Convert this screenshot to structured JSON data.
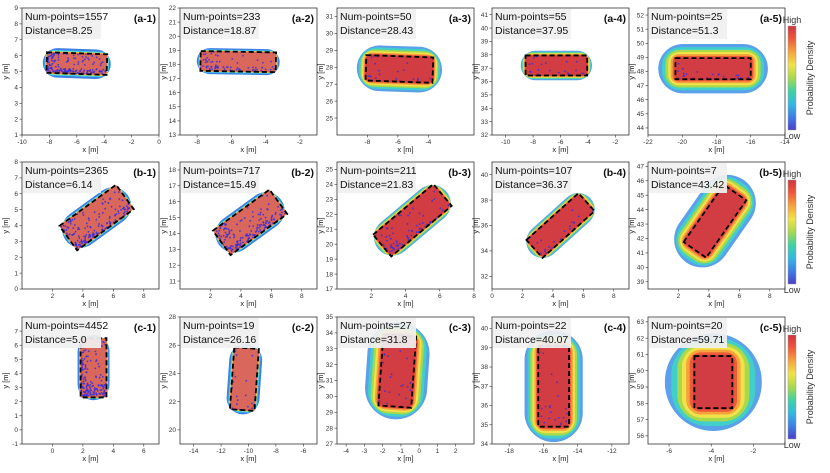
{
  "colorbar": {
    "title": "Probability Density",
    "high": "High",
    "low": "Low",
    "colors": [
      "#4a3fc8",
      "#3d7fe6",
      "#34b9e2",
      "#3fd2a3",
      "#a8d94b",
      "#f2e24a",
      "#f7a33d",
      "#ee5b3a",
      "#cf3440"
    ]
  },
  "chart_data": [
    {
      "type": "scatter",
      "id": "(a-1)",
      "num_label": "Num-points=1557",
      "dist_label": "Distance=8.25",
      "xlabel": "x [m]",
      "ylabel": "y [m]",
      "xlim": [
        -10,
        0
      ],
      "ylim": [
        1,
        9
      ],
      "xticks": [
        "-10",
        "-8",
        "-6",
        "-4",
        "-2",
        "0"
      ],
      "yticks": [
        "1",
        "2",
        "3",
        "4",
        "5",
        "6",
        "7",
        "8",
        "9"
      ],
      "box": {
        "cx": -6,
        "cy": 5.5,
        "w": 4.4,
        "h": 1.3,
        "angle": -2
      },
      "spread": 0.28,
      "density": "red",
      "points": "heavy"
    },
    {
      "type": "scatter",
      "id": "(a-2)",
      "num_label": "Num-points=233",
      "dist_label": "Distance=18.87",
      "xlabel": "x [m]",
      "ylabel": "y [m]",
      "xlim": [
        -9,
        -1
      ],
      "ylim": [
        13,
        22
      ],
      "xticks": [
        "-8",
        "-6",
        "-4",
        "-2"
      ],
      "yticks": [
        "13",
        "14",
        "15",
        "16",
        "17",
        "18",
        "19",
        "20",
        "21",
        "22"
      ],
      "box": {
        "cx": -5.6,
        "cy": 18.2,
        "w": 4.4,
        "h": 1.4,
        "angle": -1
      },
      "spread": 0.22,
      "density": "red",
      "points": "medium"
    },
    {
      "type": "scatter",
      "id": "(a-3)",
      "num_label": "Num-points=50",
      "dist_label": "Distance=28.43",
      "xlabel": "x [m]",
      "ylabel": "y [m]",
      "xlim": [
        -10,
        -1
      ],
      "ylim": [
        24,
        31.5
      ],
      "xticks": [
        "-8",
        "-6",
        "-4"
      ],
      "yticks": [
        "25",
        "26",
        "27",
        "28",
        "29",
        "30",
        "31"
      ],
      "box": {
        "cx": -5.9,
        "cy": 27.9,
        "w": 4.4,
        "h": 1.5,
        "angle": -2
      },
      "spread": 0.6,
      "density": "gradient",
      "points": "light"
    },
    {
      "type": "scatter",
      "id": "(a-4)",
      "num_label": "Num-points=55",
      "dist_label": "Distance=37.95",
      "xlabel": "x [m]",
      "ylabel": "y [m]",
      "xlim": [
        -11,
        -1
      ],
      "ylim": [
        32,
        41.5
      ],
      "xticks": [
        "-10",
        "-8",
        "-6",
        "-4",
        "-2"
      ],
      "yticks": [
        "32",
        "33",
        "34",
        "35",
        "36",
        "37",
        "38",
        "39",
        "40",
        "41"
      ],
      "box": {
        "cx": -6.3,
        "cy": 37.2,
        "w": 4.5,
        "h": 1.5,
        "angle": 0
      },
      "spread": 0.35,
      "density": "gradient",
      "points": "light"
    },
    {
      "type": "scatter",
      "id": "(a-5)",
      "num_label": "Num-points=25",
      "dist_label": "Distance=51.3",
      "xlabel": "x [m]",
      "ylabel": "y [m]",
      "xlim": [
        -22,
        -14
      ],
      "ylim": [
        43.5,
        52.5
      ],
      "xticks": [
        "-22",
        "-20",
        "-18",
        "-16",
        "-14"
      ],
      "yticks": [
        "44",
        "45",
        "46",
        "47",
        "48",
        "49",
        "50",
        "51",
        "52"
      ],
      "box": {
        "cx": -18.2,
        "cy": 48.2,
        "w": 4.4,
        "h": 1.5,
        "angle": 0
      },
      "spread": 1.0,
      "density": "gradient",
      "points": "light"
    },
    {
      "type": "scatter",
      "id": "(b-1)",
      "num_label": "Num-points=2365",
      "dist_label": "Distance=6.14",
      "xlabel": "x [m]",
      "ylabel": "y [m]",
      "xlim": [
        0,
        9
      ],
      "ylim": [
        0,
        8
      ],
      "xticks": [
        "2",
        "4",
        "6",
        "8"
      ],
      "yticks": [
        "0",
        "1",
        "2",
        "3",
        "4",
        "5",
        "6",
        "7",
        "8"
      ],
      "box": {
        "cx": 4.9,
        "cy": 4.5,
        "w": 4.6,
        "h": 1.9,
        "angle": 36
      },
      "spread": 0.22,
      "density": "red",
      "points": "heavy"
    },
    {
      "type": "scatter",
      "id": "(b-2)",
      "num_label": "Num-points=717",
      "dist_label": "Distance=15.49",
      "xlabel": "x [m]",
      "ylabel": "y [m]",
      "xlim": [
        0,
        9
      ],
      "ylim": [
        10.5,
        18.5
      ],
      "xticks": [
        "2",
        "4",
        "6",
        "8"
      ],
      "yticks": [
        "11",
        "12",
        "13",
        "14",
        "15",
        "16",
        "17",
        "18"
      ],
      "box": {
        "cx": 4.6,
        "cy": 14.7,
        "w": 4.6,
        "h": 1.9,
        "angle": 36
      },
      "spread": 0.22,
      "density": "red",
      "points": "heavy"
    },
    {
      "type": "scatter",
      "id": "(b-3)",
      "num_label": "Num-points=211",
      "dist_label": "Distance=21.83",
      "xlabel": "x [m]",
      "ylabel": "y [m]",
      "xlim": [
        0,
        8
      ],
      "ylim": [
        17,
        25.5
      ],
      "xticks": [
        "2",
        "4",
        "6",
        "8"
      ],
      "yticks": [
        "17",
        "18",
        "19",
        "20",
        "21",
        "22",
        "23",
        "24",
        "25"
      ],
      "box": {
        "cx": 4.4,
        "cy": 21.6,
        "w": 4.6,
        "h": 1.9,
        "angle": 40
      },
      "spread": 0.3,
      "density": "gradient",
      "points": "medium"
    },
    {
      "type": "scatter",
      "id": "(b-4)",
      "num_label": "Num-points=107",
      "dist_label": "Distance=36.37",
      "xlabel": "x [m]",
      "ylabel": "y [m]",
      "xlim": [
        0,
        9
      ],
      "ylim": [
        31,
        41
      ],
      "xticks": [
        "0",
        "2",
        "4",
        "6",
        "8"
      ],
      "yticks": [
        "32",
        "34",
        "36",
        "38",
        "40"
      ],
      "box": {
        "cx": 4.5,
        "cy": 36,
        "w": 4.6,
        "h": 1.9,
        "angle": 42
      },
      "spread": 0.35,
      "density": "gradient",
      "points": "light"
    },
    {
      "type": "scatter",
      "id": "(b-5)",
      "num_label": "Num-points=7",
      "dist_label": "Distance=43.42",
      "xlabel": "x [m]",
      "ylabel": "y [m]",
      "xlim": [
        0,
        9
      ],
      "ylim": [
        38.5,
        47.3
      ],
      "xticks": [
        "2",
        "4",
        "6",
        "8"
      ],
      "yticks": [
        "39",
        "40",
        "41",
        "42",
        "43",
        "44",
        "45",
        "46",
        "47"
      ],
      "box": {
        "cx": 4.4,
        "cy": 43.2,
        "w": 4.6,
        "h": 1.9,
        "angle": 55
      },
      "spread": 1.0,
      "density": "gradient",
      "points": "none"
    },
    {
      "type": "scatter",
      "id": "(c-1)",
      "num_label": "Num-points=4452",
      "dist_label": "Distance=5.0",
      "xlabel": "x [m]",
      "ylabel": "y [m]",
      "xlim": [
        -2,
        7
      ],
      "ylim": [
        -1,
        8
      ],
      "xticks": [
        "0",
        "2",
        "4",
        "6"
      ],
      "yticks": [
        "-1",
        "0",
        "1",
        "2",
        "3",
        "4",
        "5",
        "6",
        "7"
      ],
      "box": {
        "cx": 2.7,
        "cy": 4.4,
        "w": 1.7,
        "h": 4.2,
        "angle": 0
      },
      "spread": 0.2,
      "density": "red",
      "points": "heavy"
    },
    {
      "type": "scatter",
      "id": "(c-2)",
      "num_label": "Num-points=19",
      "dist_label": "Distance=26.16",
      "xlabel": "x [m]",
      "ylabel": "y [m]",
      "xlim": [
        -15,
        -5
      ],
      "ylim": [
        19,
        28
      ],
      "xticks": [
        "-14",
        "-12",
        "-10",
        "-8",
        "-6"
      ],
      "yticks": [
        "20",
        "22",
        "24",
        "26",
        "28"
      ],
      "box": {
        "cx": -10.3,
        "cy": 23.6,
        "w": 1.8,
        "h": 4.4,
        "angle": -4
      },
      "spread": 0.3,
      "density": "red",
      "points": "light"
    },
    {
      "type": "scatter",
      "id": "(c-3)",
      "num_label": "Num-points=27",
      "dist_label": "Distance=31.8",
      "xlabel": "x [m]",
      "ylabel": "y [m]",
      "xlim": [
        -4.5,
        3
      ],
      "ylim": [
        27,
        35
      ],
      "xticks": [
        "-4",
        "-3",
        "-2",
        "-1",
        "0",
        "1",
        "2"
      ],
      "yticks": [
        "27",
        "28",
        "29",
        "30",
        "31",
        "32",
        "33",
        "34",
        "35"
      ],
      "box": {
        "cx": -1.2,
        "cy": 31.6,
        "w": 1.8,
        "h": 4.5,
        "angle": -4
      },
      "spread": 0.8,
      "density": "gradient",
      "points": "light"
    },
    {
      "type": "scatter",
      "id": "(c-4)",
      "num_label": "Num-points=22",
      "dist_label": "Distance=40.07",
      "xlabel": "x [m]",
      "ylabel": "y [m]",
      "xlim": [
        -19,
        -11
      ],
      "ylim": [
        34,
        40.6
      ],
      "xticks": [
        "-18",
        "-16",
        "-14",
        "-12"
      ],
      "yticks": [
        "34",
        "35",
        "36",
        "37",
        "38",
        "39",
        "40"
      ],
      "box": {
        "cx": -15.4,
        "cy": 37,
        "w": 1.8,
        "h": 4.2,
        "angle": 0
      },
      "spread": 0.8,
      "density": "gradient",
      "points": "light"
    },
    {
      "type": "scatter",
      "id": "(c-5)",
      "num_label": "Num-points=20",
      "dist_label": "Distance=59.71",
      "xlabel": "x [m]",
      "ylabel": "y [m]",
      "xlim": [
        -7,
        -0.5
      ],
      "ylim": [
        55.5,
        63.3
      ],
      "xticks": [
        "-6",
        "-4",
        "-2"
      ],
      "yticks": [
        "56",
        "57",
        "58",
        "59",
        "60",
        "61",
        "62",
        "63"
      ],
      "box": {
        "cx": -3.9,
        "cy": 59.3,
        "w": 1.8,
        "h": 3.2,
        "angle": 0
      },
      "spread": 1.4,
      "density": "gradient",
      "points": "none"
    }
  ]
}
